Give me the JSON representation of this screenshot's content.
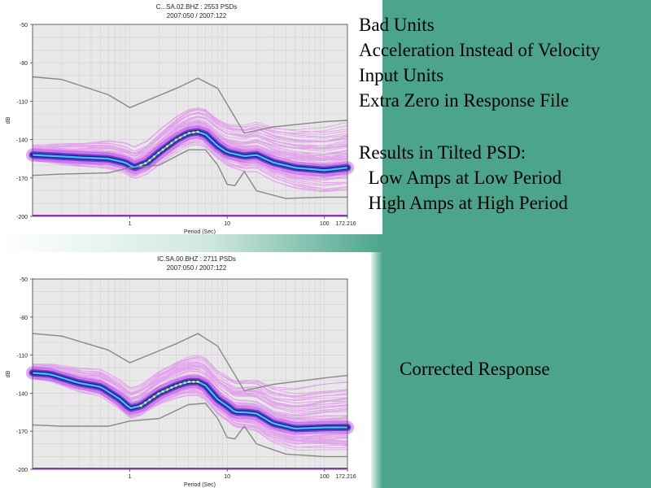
{
  "text": {
    "bad_units": "Bad Units",
    "acceleration": "Acceleration Instead of Velocity",
    "input_units": "Input Units",
    "extra_zero": "Extra Zero in Response File",
    "results": "Results in Tilted PSD:",
    "low_amps": "  Low Amps at Low Period",
    "high_amps": "  High Amps at High Period",
    "corrected": "Corrected Response"
  },
  "colors": {
    "background": "#4aa58c",
    "psd_cloud": "#e070f0",
    "mode_line": "#30c8e8",
    "model_lines": "#888888"
  },
  "chart_data": [
    {
      "type": "line",
      "title": "C...SA.02.BHZ : 2553 PSDs",
      "subtitle": "2007:050 / 2007:122",
      "xlabel": "Period (Sec)",
      "ylabel": "dB",
      "x_scale": "log",
      "xlim": [
        0.1,
        172.216
      ],
      "ylim": [
        -200,
        -50
      ],
      "yticks": [
        "-50",
        "-80",
        "-110",
        "-140",
        "-170",
        "-200"
      ],
      "xticks": [
        "1",
        "10",
        "100",
        "172.216"
      ],
      "series": [
        {
          "role": "mode",
          "x": [
            0.1,
            0.3,
            0.6,
            0.9,
            1.1,
            1.5,
            2,
            3,
            4,
            5,
            6,
            8,
            10,
            15,
            20,
            30,
            50,
            100,
            172
          ],
          "y": [
            -152,
            -154,
            -155,
            -158,
            -162,
            -158,
            -150,
            -140,
            -135,
            -134,
            -136,
            -145,
            -150,
            -153,
            -152,
            -158,
            -162,
            -164,
            -162
          ]
        },
        {
          "role": "high-noise-model",
          "x": [
            0.1,
            0.2,
            0.6,
            1,
            3,
            5,
            8,
            15,
            30,
            100,
            172
          ],
          "y": [
            -91,
            -93,
            -105,
            -115,
            -100,
            -92,
            -100,
            -135,
            -130,
            -126,
            -125
          ]
        },
        {
          "role": "low-noise-model",
          "x": [
            0.1,
            0.2,
            0.6,
            1,
            2,
            4,
            6,
            8,
            10,
            12,
            15,
            20,
            40,
            100,
            172
          ],
          "y": [
            -168,
            -167,
            -166,
            -162,
            -160,
            -148,
            -148,
            -160,
            -175,
            -176,
            -165,
            -180,
            -186,
            -185,
            -185
          ]
        }
      ]
    },
    {
      "type": "line",
      "title": "IC.SA.00.BHZ : 2711 PSDs",
      "subtitle": "2007:050 / 2007:122",
      "xlabel": "Period (Sec)",
      "ylabel": "dB",
      "x_scale": "log",
      "xlim": [
        0.1,
        172.216
      ],
      "ylim": [
        -200,
        -50
      ],
      "yticks": [
        "-50",
        "-80",
        "-110",
        "-140",
        "-170",
        "-200"
      ],
      "xticks": [
        "1",
        "10",
        "100",
        "172.216"
      ],
      "series": [
        {
          "role": "mode",
          "x": [
            0.1,
            0.15,
            0.3,
            0.5,
            0.8,
            1,
            1.3,
            2,
            3,
            4,
            5,
            6,
            8,
            10,
            12,
            15,
            20,
            30,
            50,
            100,
            172
          ],
          "y": [
            -124,
            -125,
            -132,
            -135,
            -145,
            -152,
            -150,
            -140,
            -134,
            -131,
            -131,
            -134,
            -145,
            -150,
            -155,
            -155,
            -156,
            -164,
            -168,
            -167,
            -167
          ]
        },
        {
          "role": "high-noise-model",
          "x": [
            0.1,
            0.2,
            0.6,
            1,
            3,
            5,
            8,
            15,
            30,
            100,
            172
          ],
          "y": [
            -93,
            -95,
            -106,
            -116,
            -101,
            -93,
            -103,
            -138,
            -133,
            -128,
            -126
          ]
        },
        {
          "role": "low-noise-model",
          "x": [
            0.1,
            0.2,
            0.6,
            1,
            2,
            4,
            6,
            8,
            10,
            12,
            15,
            20,
            40,
            100,
            172
          ],
          "y": [
            -165,
            -166,
            -166,
            -162,
            -160,
            -149,
            -148,
            -160,
            -175,
            -176,
            -166,
            -180,
            -188,
            -190,
            -190
          ]
        }
      ]
    }
  ]
}
